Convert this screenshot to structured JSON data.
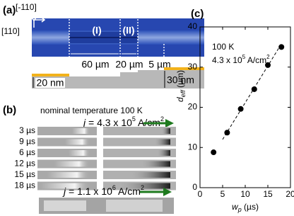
{
  "panel_a": {
    "label": "(a)",
    "dir_1": "[-110]",
    "dir_2": "[110]",
    "region_1": "(I)",
    "region_2": "(II)",
    "dims": [
      "60 µm",
      "20 µm",
      "5 µm"
    ],
    "thick_1": "20 nm",
    "thick_2": "30 nm"
  },
  "panel_b": {
    "label": "(b)",
    "heading": "nominal temperature 100 K",
    "current_1": {
      "symbol": "j",
      "text": " = 4.3 x 10",
      "exp": "5",
      "unit": " A/cm",
      "unit_exp": "2"
    },
    "pulse_widths": [
      "3 µs",
      "9 µs",
      "6 µs",
      "12 µs",
      "15 µs",
      "18 µs"
    ],
    "current_2": {
      "symbol": "j",
      "text": " = 1.1 x 10",
      "exp": "6",
      "unit": " A/cm",
      "unit_exp": "2"
    }
  },
  "chart_data": {
    "type": "scatter",
    "panel_label": "(c)",
    "annotation_1": "100 K",
    "annotation_2": {
      "text": "4.3 x 10",
      "exp": "5",
      "unit": " A/cm",
      "unit_exp": "2"
    },
    "x_label": {
      "symbol": "w",
      "sub": "p",
      "unit": " (µs)"
    },
    "y_label": {
      "symbol": "d",
      "sub": "eff",
      "unit": " (µm)"
    },
    "x": [
      3,
      6,
      9,
      12,
      15,
      18
    ],
    "values": [
      8.8,
      13.7,
      19.6,
      24.5,
      30.5,
      35
    ],
    "color": "#000000",
    "fit": {
      "x": [
        5,
        18
      ],
      "values": [
        12,
        35.8
      ]
    },
    "xlim": [
      0,
      20
    ],
    "ylim": [
      0,
      40
    ],
    "xticks": [
      0,
      5,
      10,
      15,
      20
    ],
    "yticks": [
      0,
      10,
      20,
      30,
      40
    ]
  }
}
